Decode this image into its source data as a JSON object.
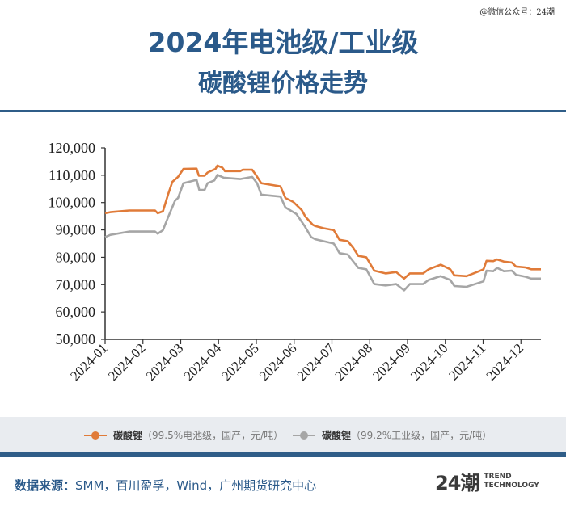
{
  "watermark": "@微信公众号：24潮",
  "title_line1": "2024年电池级/工业级",
  "title_line2": "碳酸锂价格走势",
  "legend": [
    {
      "name": "碳酸锂",
      "desc": "（99.5%电池级，国产，元/吨）",
      "color": "#e07b39"
    },
    {
      "name": "碳酸锂",
      "desc": "（99.2%工业级，国产，元/吨）",
      "color": "#a6a6a6"
    }
  ],
  "source_label": "数据来源：",
  "source_text": "SMM，百川盈孚，Wind，广州期货研究中心",
  "logo": {
    "mark": "24潮",
    "line1": "TREND",
    "line2": "TECHNOLOGY"
  },
  "chart_data": {
    "type": "line",
    "title": "2024年电池级/工业级碳酸锂价格走势",
    "xlabel": "",
    "ylabel": "元/吨",
    "x_unit": "months elapsed since 2024-01-01",
    "x_ticks": [
      "2024-01",
      "2024-02",
      "2024-03",
      "2024-04",
      "2024-05",
      "2024-06",
      "2024-07",
      "2024-08",
      "2024-09",
      "2024-10",
      "2024-11",
      "2024-12"
    ],
    "y_ticks": [
      "50,000",
      "60,000",
      "70,000",
      "80,000",
      "90,000",
      "100,000",
      "110,000",
      "120,000"
    ],
    "ylim": [
      50000,
      120000
    ],
    "xlim": [
      0,
      11.53
    ],
    "grid": false,
    "legend_position": "bottom",
    "series": [
      {
        "name": "碳酸锂（99.5%电池级，国产，元/吨）",
        "color": "#e07b39",
        "x": [
          0,
          0.14,
          0.64,
          1.32,
          1.39,
          1.53,
          1.67,
          1.78,
          1.93,
          2.07,
          2.42,
          2.48,
          2.63,
          2.71,
          2.92,
          2.97,
          3.1,
          3.17,
          3.57,
          3.64,
          3.89,
          3.99,
          4.13,
          4.34,
          4.64,
          4.77,
          4.98,
          5.2,
          5.3,
          5.49,
          5.56,
          5.78,
          6.05,
          6.2,
          6.42,
          6.56,
          6.7,
          6.91,
          7.12,
          7.42,
          7.7,
          7.91,
          8.06,
          8.41,
          8.56,
          8.88,
          9.13,
          9.24,
          9.56,
          9.84,
          10.01,
          10.09,
          10.27,
          10.37,
          10.55,
          10.76,
          10.87,
          11.12,
          11.27,
          11.53
        ],
        "y": [
          96100,
          96500,
          97100,
          97100,
          96100,
          96800,
          103200,
          107600,
          109400,
          112300,
          112400,
          109800,
          109800,
          111000,
          112300,
          113500,
          112800,
          111500,
          111500,
          112000,
          112000,
          110100,
          107100,
          106600,
          105900,
          101700,
          100200,
          97300,
          94800,
          91900,
          91400,
          90600,
          89900,
          86400,
          85900,
          83500,
          80500,
          80000,
          75100,
          74100,
          74600,
          72200,
          74100,
          74100,
          75600,
          77300,
          75600,
          73400,
          73100,
          74600,
          75600,
          78700,
          78600,
          79200,
          78400,
          78100,
          76600,
          76300,
          75600,
          75600
        ]
      },
      {
        "name": "碳酸锂（99.2%工业级，国产，元/吨）",
        "color": "#a6a6a6",
        "x": [
          0,
          0.14,
          0.64,
          1.32,
          1.39,
          1.53,
          1.67,
          1.85,
          1.93,
          2.07,
          2.42,
          2.49,
          2.63,
          2.71,
          2.89,
          2.97,
          3.14,
          3.57,
          3.89,
          4.02,
          4.13,
          4.64,
          4.77,
          5.06,
          5.28,
          5.45,
          5.56,
          6.05,
          6.2,
          6.42,
          6.7,
          6.91,
          7.12,
          7.42,
          7.7,
          7.91,
          8.06,
          8.41,
          8.56,
          8.88,
          9.13,
          9.24,
          9.56,
          10.01,
          10.09,
          10.27,
          10.37,
          10.55,
          10.76,
          10.87,
          11.12,
          11.27,
          11.53
        ],
        "y": [
          87400,
          88200,
          89400,
          89400,
          88600,
          89900,
          94800,
          100700,
          101700,
          107100,
          108300,
          104600,
          104600,
          107100,
          108100,
          110100,
          109100,
          108600,
          109400,
          107100,
          102900,
          102200,
          98200,
          95800,
          91400,
          87400,
          86600,
          85000,
          81500,
          81000,
          76100,
          75600,
          70200,
          69700,
          70200,
          67900,
          70200,
          70200,
          71700,
          73100,
          71700,
          69500,
          69200,
          71200,
          75100,
          74900,
          76100,
          74900,
          75100,
          73600,
          72900,
          72200,
          72200
        ]
      }
    ]
  }
}
